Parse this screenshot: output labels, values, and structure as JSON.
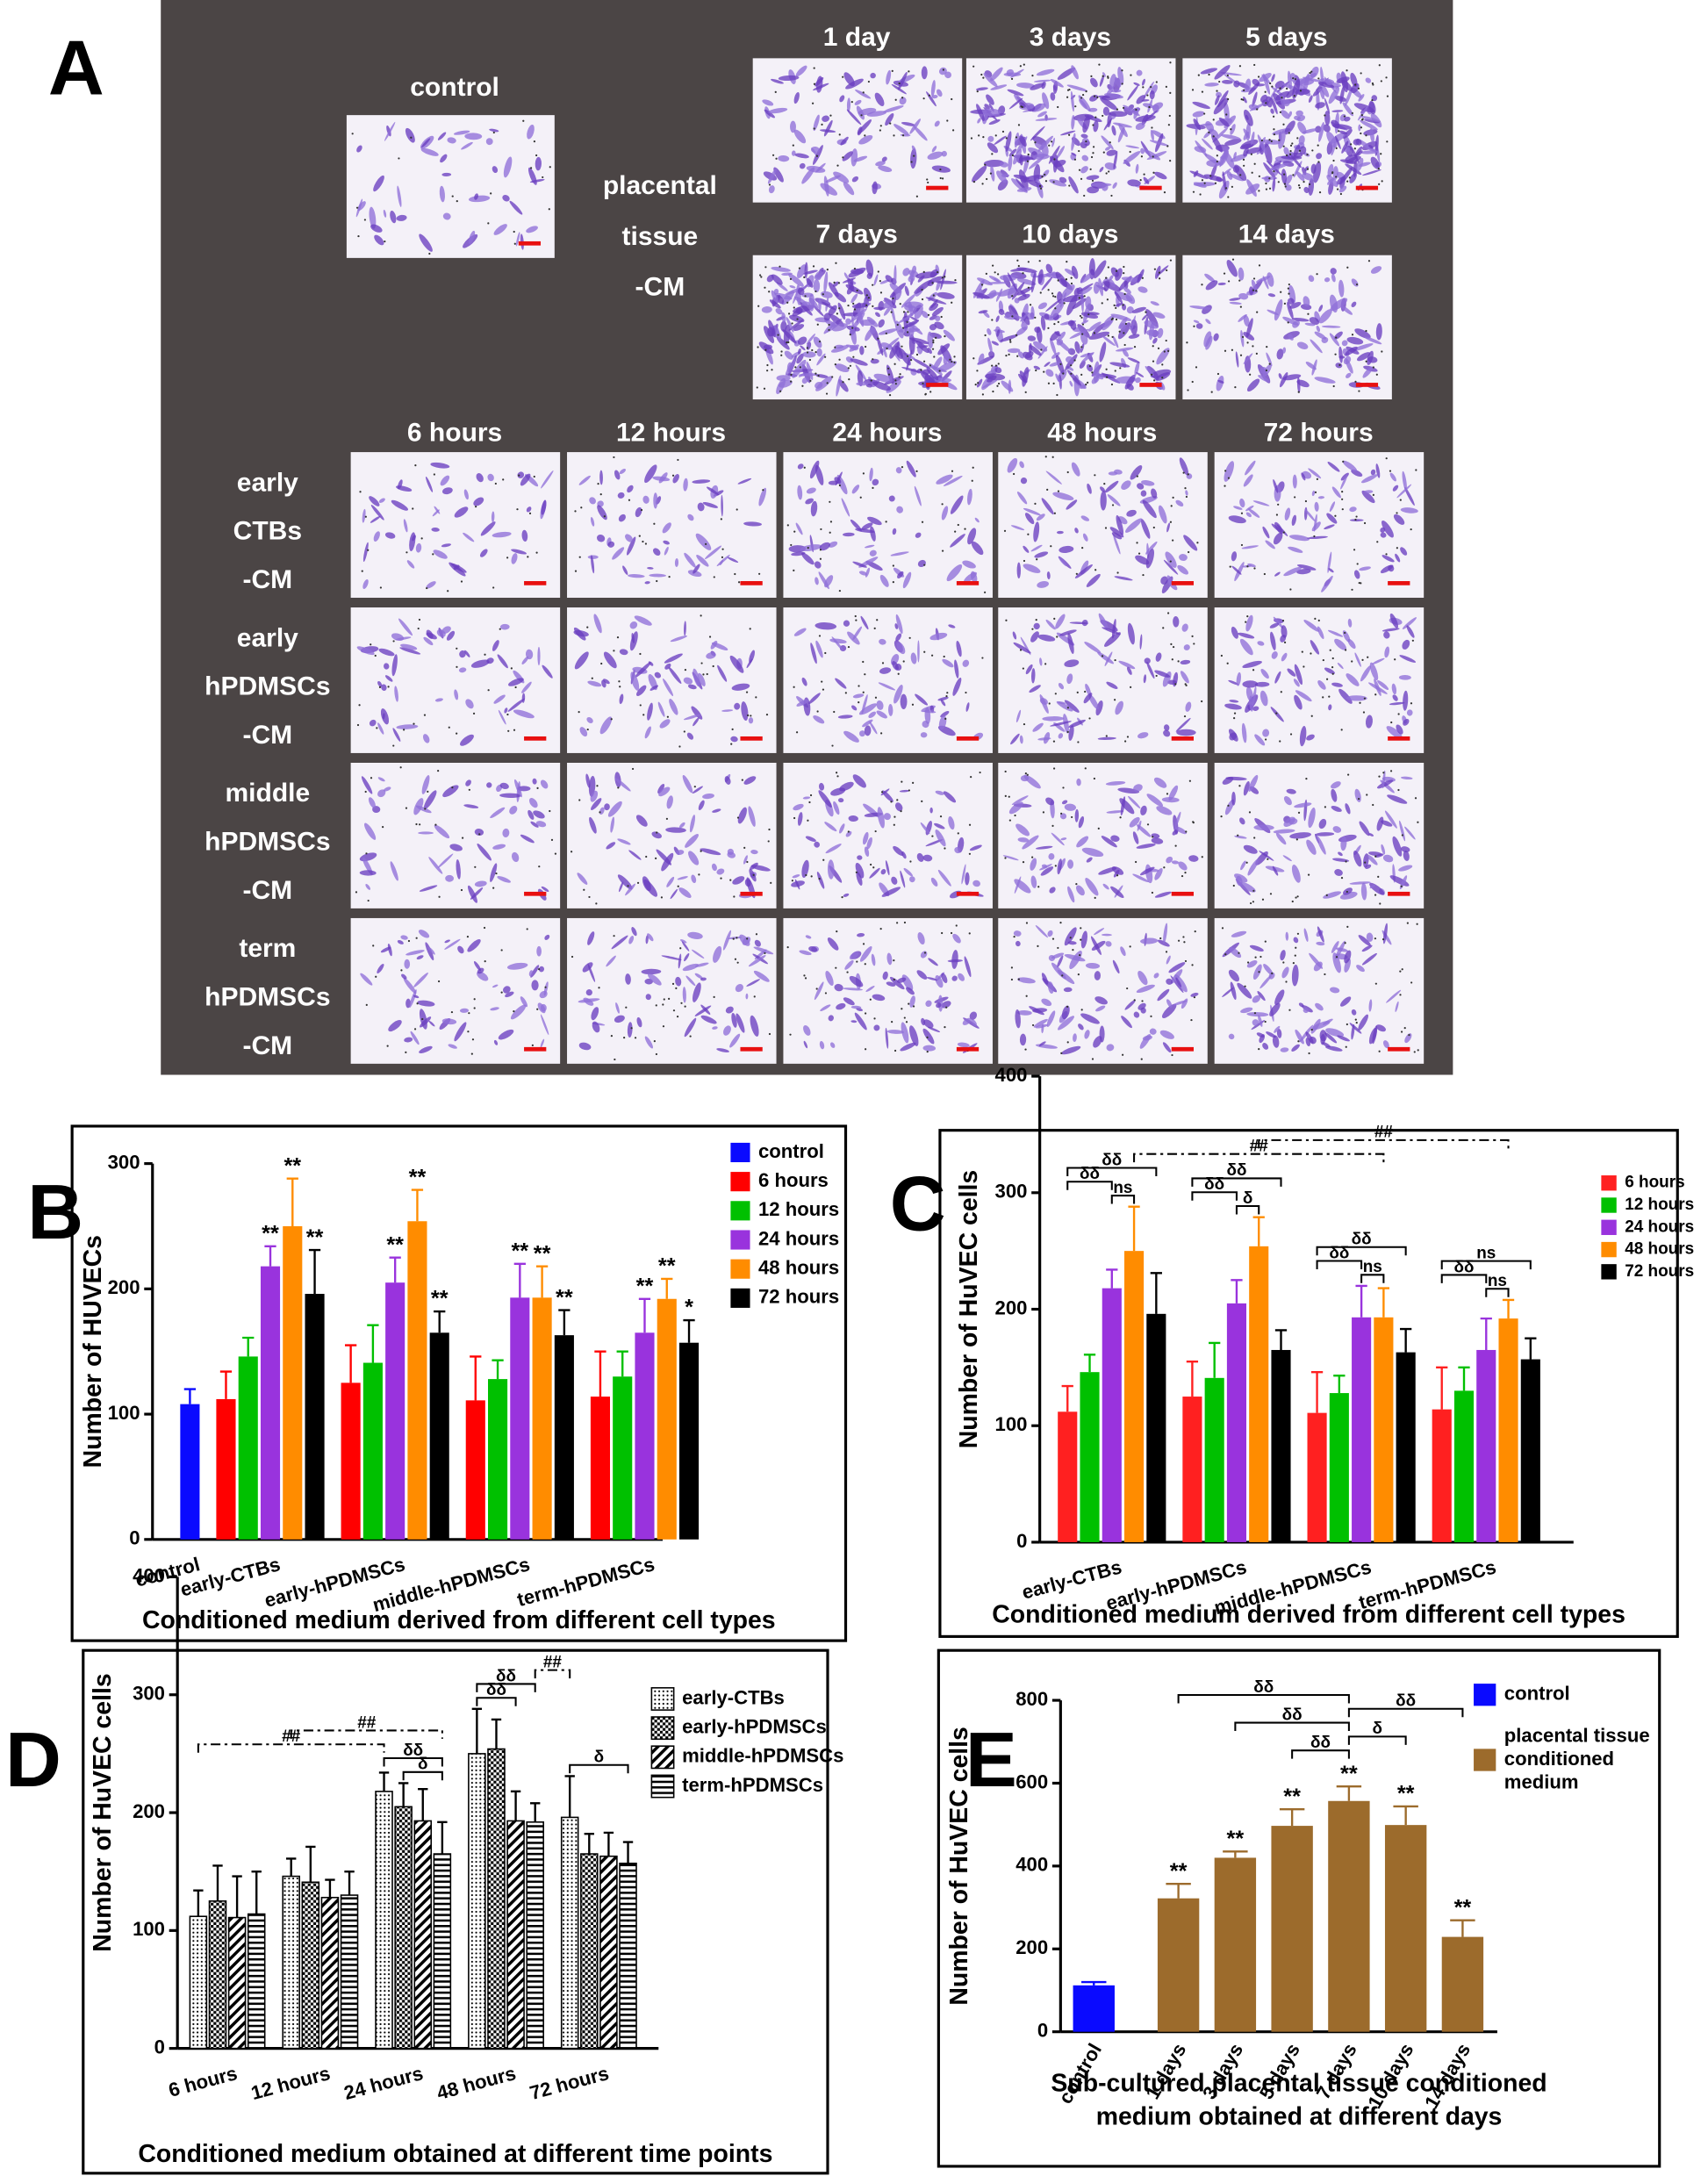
{
  "panel_a": {
    "label": "A",
    "control": "control",
    "placental_label": [
      "placental",
      "tissue",
      "-CM"
    ],
    "days": [
      "1 day",
      "3 days",
      "5 days",
      "7 days",
      "10 days",
      "14 days"
    ],
    "hours": [
      "6 hours",
      "12 hours",
      "24 hours",
      "48 hours",
      "72 hours"
    ],
    "rows": [
      [
        "early",
        "CTBs",
        "-CM"
      ],
      [
        "early",
        "hPDMSCs",
        "-CM"
      ],
      [
        "middle",
        "hPDMSCs",
        "-CM"
      ],
      [
        "term",
        "hPDMSCs",
        "-CM"
      ]
    ]
  },
  "chart_data": [
    {
      "panel": "B",
      "type": "bar",
      "ylabel": "Number of HUVECs",
      "xlabel": "Conditioned medium derived from different cell types",
      "categories": [
        "control",
        "early-CTBs",
        "early-hPDMSCs",
        "middle-hPDMSCs",
        "term-hPDMSCs"
      ],
      "ylim": [
        0,
        300
      ],
      "yticks": [
        0,
        100,
        200,
        300
      ],
      "legend": "upper right",
      "series": [
        {
          "name": "control",
          "color": "#0a0aff",
          "values": [
            108,
            null,
            null,
            null,
            null
          ],
          "errors": [
            12,
            null,
            null,
            null,
            null
          ]
        },
        {
          "name": "6 hours",
          "color": "#ff0000",
          "values": [
            null,
            112,
            125,
            111,
            114
          ],
          "errors": [
            null,
            22,
            30,
            35,
            36
          ]
        },
        {
          "name": "12 hours",
          "color": "#00c000",
          "values": [
            null,
            146,
            141,
            128,
            130
          ],
          "errors": [
            null,
            15,
            30,
            15,
            20
          ]
        },
        {
          "name": "24 hours",
          "color": "#9933dd",
          "values": [
            null,
            218,
            205,
            193,
            165
          ],
          "errors": [
            null,
            16,
            20,
            27,
            27
          ],
          "significance": [
            null,
            "**",
            "**",
            "**",
            "**"
          ]
        },
        {
          "name": "48 hours",
          "color": "#ff8c00",
          "values": [
            null,
            250,
            254,
            193,
            192
          ],
          "errors": [
            null,
            38,
            25,
            25,
            16
          ],
          "significance": [
            null,
            "**",
            "**",
            "**",
            "**"
          ]
        },
        {
          "name": "72 hours",
          "color": "#000000",
          "values": [
            null,
            196,
            165,
            163,
            157
          ],
          "errors": [
            null,
            35,
            17,
            20,
            18
          ],
          "significance": [
            null,
            "**",
            "**",
            "**",
            "*"
          ]
        }
      ]
    },
    {
      "panel": "C",
      "type": "bar",
      "ylabel": "Number of HuVEC cells",
      "xlabel": "Conditioned medium derived from different cell types",
      "categories": [
        "early-CTBs",
        "early-hPDMSCs",
        "middle-hPDMSCs",
        "term-hPDMSCs"
      ],
      "ylim": [
        0,
        400
      ],
      "yticks": [
        0,
        100,
        200,
        300,
        400
      ],
      "legend": "upper right",
      "series": [
        {
          "name": "6 hours",
          "color": "#ff2020",
          "values": [
            112,
            125,
            111,
            114
          ],
          "errors": [
            22,
            30,
            35,
            36
          ]
        },
        {
          "name": "12 hours",
          "color": "#00c000",
          "values": [
            146,
            141,
            128,
            130
          ],
          "errors": [
            15,
            30,
            15,
            20
          ]
        },
        {
          "name": "24 hours",
          "color": "#9933dd",
          "values": [
            218,
            205,
            193,
            165
          ],
          "errors": [
            16,
            20,
            27,
            27
          ]
        },
        {
          "name": "48 hours",
          "color": "#ff8c00",
          "values": [
            250,
            254,
            193,
            192
          ],
          "errors": [
            38,
            25,
            25,
            16
          ]
        },
        {
          "name": "72 hours",
          "color": "#000000",
          "values": [
            196,
            165,
            163,
            157
          ],
          "errors": [
            35,
            17,
            20,
            18
          ]
        }
      ],
      "brackets": [
        {
          "from": [
            0,
            2
          ],
          "to": [
            0,
            3
          ],
          "label": "ns"
        },
        {
          "from": [
            0,
            0
          ],
          "to": [
            0,
            2
          ],
          "label": "δδ"
        },
        {
          "from": [
            0,
            0
          ],
          "to": [
            0,
            4
          ],
          "label": "δδ"
        },
        {
          "from": [
            1,
            2
          ],
          "to": [
            1,
            3
          ],
          "label": "δ"
        },
        {
          "from": [
            1,
            0
          ],
          "to": [
            1,
            2
          ],
          "label": "δδ"
        },
        {
          "from": [
            1,
            0
          ],
          "to": [
            1,
            4
          ],
          "label": "δδ"
        },
        {
          "from": [
            2,
            2
          ],
          "to": [
            2,
            3
          ],
          "label": "ns"
        },
        {
          "from": [
            2,
            0
          ],
          "to": [
            2,
            2
          ],
          "label": "δδ"
        },
        {
          "from": [
            2,
            0
          ],
          "to": [
            2,
            4
          ],
          "label": "δδ"
        },
        {
          "from": [
            3,
            2
          ],
          "to": [
            3,
            3
          ],
          "label": "ns"
        },
        {
          "from": [
            3,
            0
          ],
          "to": [
            3,
            2
          ],
          "label": "δδ"
        },
        {
          "from": [
            3,
            0
          ],
          "to": [
            3,
            4
          ],
          "label": "ns"
        },
        {
          "from": [
            0,
            3
          ],
          "to": [
            2,
            3
          ],
          "label": "##",
          "style": "dashdot"
        },
        {
          "from": [
            1,
            3
          ],
          "to": [
            3,
            3
          ],
          "label": "##",
          "style": "dashdot"
        }
      ]
    },
    {
      "panel": "D",
      "type": "bar",
      "ylabel": "Number of HuVEC cells",
      "xlabel": "Conditioned medium obtained at different time points",
      "categories": [
        "6 hours",
        "12 hours",
        "24 hours",
        "48 hours",
        "72 hours"
      ],
      "ylim": [
        0,
        400
      ],
      "yticks": [
        0,
        100,
        200,
        300,
        400
      ],
      "legend": "upper right",
      "series": [
        {
          "name": "early-CTBs",
          "color": "#000000",
          "pattern": "dots",
          "values": [
            112,
            146,
            218,
            250,
            196
          ],
          "errors": [
            22,
            15,
            16,
            38,
            35
          ]
        },
        {
          "name": "early-hPDMSCs",
          "color": "#000000",
          "pattern": "checker",
          "values": [
            125,
            141,
            205,
            254,
            165
          ],
          "errors": [
            30,
            30,
            20,
            25,
            17
          ]
        },
        {
          "name": "middle-hPDMSCs",
          "color": "#000000",
          "pattern": "diagonal",
          "values": [
            111,
            128,
            193,
            193,
            163
          ],
          "errors": [
            35,
            15,
            27,
            25,
            20
          ]
        },
        {
          "name": "term-hPDMSCs",
          "color": "#000000",
          "pattern": "horizontal",
          "values": [
            114,
            130,
            165,
            192,
            157
          ],
          "errors": [
            36,
            20,
            27,
            16,
            18
          ]
        }
      ],
      "brackets": [
        {
          "from": [
            2,
            1
          ],
          "to": [
            2,
            3
          ],
          "label": "δ"
        },
        {
          "from": [
            2,
            0
          ],
          "to": [
            2,
            3
          ],
          "label": "δδ"
        },
        {
          "from": [
            3,
            0
          ],
          "to": [
            3,
            2
          ],
          "label": "δδ"
        },
        {
          "from": [
            3,
            0
          ],
          "to": [
            3,
            3
          ],
          "label": "δδ"
        },
        {
          "from": [
            4,
            0
          ],
          "to": [
            4,
            3
          ],
          "label": "δ"
        },
        {
          "from": [
            0,
            0
          ],
          "to": [
            2,
            0
          ],
          "label": "##",
          "style": "dashdot"
        },
        {
          "from": [
            1,
            0
          ],
          "to": [
            2,
            3
          ],
          "label": "##",
          "style": "dashdot"
        },
        {
          "from": [
            3,
            3
          ],
          "to": [
            4,
            0
          ],
          "label": "##",
          "style": "dashdot"
        }
      ]
    },
    {
      "panel": "E",
      "type": "bar",
      "ylabel": "Number of HuVEC cells",
      "xlabel": [
        "Sub-cultured placental tissue conditioned",
        "medium obtained at different days"
      ],
      "categories": [
        "control",
        "1 days",
        "3 days",
        "5 days",
        "7 days",
        "10 days",
        "14 days"
      ],
      "ylim": [
        0,
        800
      ],
      "yticks": [
        0,
        200,
        400,
        600,
        800
      ],
      "legend": "upper right",
      "series": [
        {
          "name": "control",
          "color": "#0a0aff",
          "values": [
            112,
            null,
            null,
            null,
            null,
            null,
            null
          ],
          "errors": [
            8,
            null,
            null,
            null,
            null,
            null,
            null
          ]
        },
        {
          "name": "placental tissue conditioned medium",
          "color": "#9c6b2c",
          "values": [
            null,
            322,
            420,
            497,
            557,
            499,
            229
          ],
          "errors": [
            null,
            35,
            15,
            40,
            35,
            45,
            40
          ],
          "significance": [
            null,
            "**",
            "**",
            "**",
            "**",
            "**",
            "**"
          ]
        }
      ],
      "brackets": [
        {
          "from": [
            3,
            1
          ],
          "to": [
            4,
            1
          ],
          "label": "δδ"
        },
        {
          "from": [
            4,
            1
          ],
          "to": [
            5,
            1
          ],
          "label": "δ"
        },
        {
          "from": [
            2,
            1
          ],
          "to": [
            4,
            1
          ],
          "label": "δδ"
        },
        {
          "from": [
            4,
            1
          ],
          "to": [
            6,
            1
          ],
          "label": "δδ"
        },
        {
          "from": [
            1,
            1
          ],
          "to": [
            4,
            1
          ],
          "label": "δδ"
        }
      ]
    }
  ]
}
